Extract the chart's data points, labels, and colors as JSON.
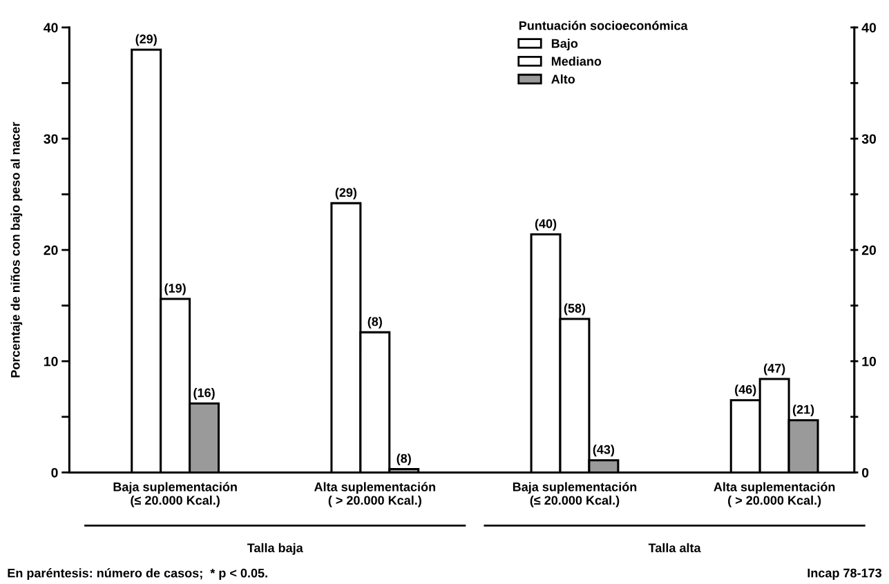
{
  "chart_data": {
    "type": "bar",
    "ylabel": "Porcentaje de niños con bajo peso al nacer",
    "legend_title": "Puntuación socioeconómica",
    "categories": [
      "Baja suplementación\n(≤ 20.000 Kcal.)",
      "Alta suplementación\n( > 20.000 Kcal.)",
      "Baja suplementación\n(≤ 20.000 Kcal.)",
      "Alta suplementación\n( > 20.000 Kcal.)"
    ],
    "series": [
      {
        "name": "Bajo",
        "color": "#ffffff",
        "values": [
          38,
          24.2,
          21.4,
          6.5
        ]
      },
      {
        "name": "Mediano",
        "color": "#ffffff",
        "values": [
          15.6,
          12.6,
          13.8,
          8.4
        ]
      },
      {
        "name": "Alto",
        "color": "#9a9a9a",
        "values": [
          6.2,
          0.3,
          1.1,
          4.7
        ]
      }
    ],
    "ylim": [
      0,
      40
    ],
    "yticks": [
      0,
      {
        "value": 5,
        "label": null
      },
      10,
      {
        "value": 15,
        "label": null
      },
      20,
      {
        "value": 25,
        "label": null
      },
      30,
      {
        "value": 35,
        "label": null
      },
      40
    ],
    "y2lim": [
      0,
      40
    ],
    "y2ticks": [
      0,
      {
        "value": 5,
        "label": null
      },
      10,
      {
        "value": 15,
        "label": null
      },
      20,
      {
        "value": 25,
        "label": null
      },
      30,
      {
        "value": 35,
        "label": null
      },
      40
    ],
    "legend": "top",
    "grid": false,
    "annotations": [
      "Talla baja",
      "Talla alta",
      "En paréntesis: número de casos;  * p < 0.05.",
      "Incap 78-173",
      "(29)",
      "(29)",
      "(40)",
      "(46)",
      "(19)",
      "(8)",
      "(58)",
      "(47)",
      "(16)",
      "(8)",
      "(43)",
      "(21)"
    ]
  }
}
